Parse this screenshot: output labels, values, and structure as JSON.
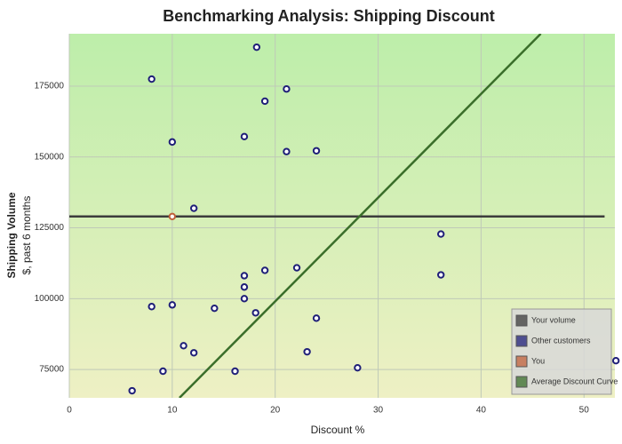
{
  "chart_data": {
    "type": "scatter",
    "title": "Benchmarking Analysis: Shipping Discount",
    "x_label": "Discount %",
    "y_label": "Shipping Volume",
    "y_sublabel": "$, past 6 months",
    "xlim": [
      0,
      53
    ],
    "xticks": [
      0,
      10,
      20,
      30,
      40,
      50
    ],
    "ylim": [
      65000,
      193500
    ],
    "yticks": [
      75000,
      100000,
      125000,
      150000,
      175000
    ],
    "grid": true,
    "legend": "lower right",
    "series": [
      {
        "name": "Your volume",
        "color": "#3c3c3c",
        "mode": "line",
        "x": [
          0,
          52
        ],
        "values": [
          129000,
          129000
        ]
      },
      {
        "name": "Other customers",
        "color": "#1f1f78",
        "mode": "points",
        "x": [
          8,
          18.2,
          21.1,
          19,
          10,
          17,
          21.1,
          24,
          12.1,
          36.1,
          22.1,
          19,
          17,
          17,
          17,
          36.1,
          8,
          10,
          14.1,
          18.1,
          24,
          11.1,
          12.1,
          23.1,
          9.1,
          16.1,
          28,
          53.1,
          6.1
        ],
        "values": [
          177500,
          188750,
          174000,
          169700,
          155300,
          157200,
          151900,
          152200,
          131900,
          122800,
          110900,
          110000,
          108100,
          104100,
          100000,
          108400,
          97200,
          97800,
          96600,
          95000,
          93100,
          83400,
          80900,
          81250,
          74400,
          74400,
          75600,
          78100,
          67500
        ]
      },
      {
        "name": "You",
        "color": "#c0603a",
        "mode": "points",
        "x": [
          10
        ],
        "values": [
          129000
        ]
      },
      {
        "name": "Average Discount Curve",
        "color": "#3a6e2a",
        "mode": "line",
        "x": [
          10.7,
          45.8
        ],
        "values": [
          65000,
          193500
        ]
      }
    ]
  }
}
